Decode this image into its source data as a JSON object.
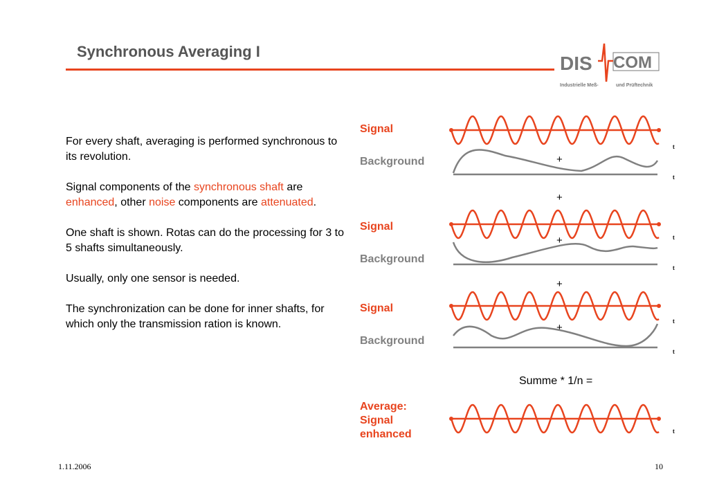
{
  "slide": {
    "title": "Synchronous Averaging I",
    "date": "1.11.2006",
    "page_number": "10"
  },
  "logo": {
    "brand_left": "DIS",
    "brand_right": "COM",
    "tagline_left": "Industrielle Meß-",
    "tagline_right": "und Prüftechnik"
  },
  "body": {
    "p1": "For every shaft, averaging is performed synchronous to its revolution.",
    "p2_a": "Signal components of the ",
    "p2_b": "synchronous shaft",
    "p2_c": " are ",
    "p2_d": "enhanced",
    "p2_e": ", other ",
    "p2_f": "noise",
    "p2_g": " components are ",
    "p2_h": "attenuated",
    "p2_i": ".",
    "p3": "One shaft is shown. Rotas can do the processing for 3 to 5 shafts simultaneously.",
    "p4": " Usually, only one sensor is needed.",
    "p5": "The synchronization can be done for inner shafts, for which only the transmission ration is known."
  },
  "diagram": {
    "signal_label": "Signal",
    "background_label": "Background",
    "plus": "+",
    "time_axis_label": "t",
    "summe": "Summe * 1/n =",
    "average_label_1": "Average:",
    "average_label_2": "Signal",
    "average_label_3": "enhanced"
  },
  "colors": {
    "accent": "#e8441e",
    "title": "#555555",
    "background_wave": "#808080"
  }
}
